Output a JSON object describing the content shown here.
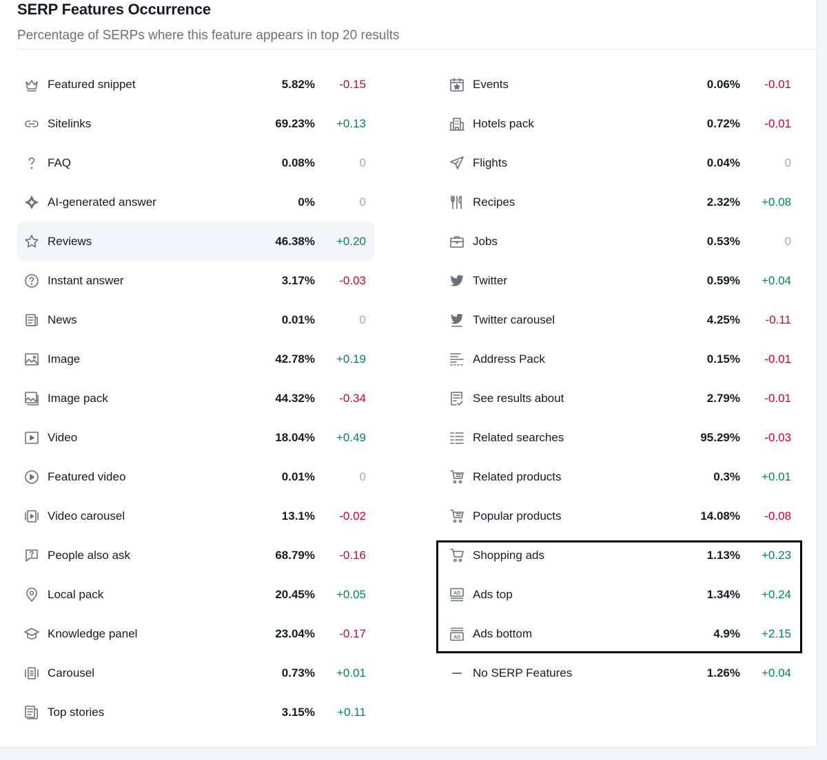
{
  "title": "SERP Features Occurrence",
  "subtitle": "Percentage of SERPs where this feature appears in top 20 results",
  "colors": {
    "positive": "#008557",
    "negative": "#d1002f",
    "neutral": "#a4a6b3",
    "highlight_row": "#f4f5f9"
  },
  "left": [
    {
      "icon": "crown-icon",
      "label": "Featured snippet",
      "value": "5.82%",
      "change": "-0.15"
    },
    {
      "icon": "link-icon",
      "label": "Sitelinks",
      "value": "69.23%",
      "change": "+0.13"
    },
    {
      "icon": "question-icon",
      "label": "FAQ",
      "value": "0.08%",
      "change": "0"
    },
    {
      "icon": "ai-sparkle-icon",
      "label": "AI-generated answer",
      "value": "0%",
      "change": "0"
    },
    {
      "icon": "star-icon",
      "label": "Reviews",
      "value": "46.38%",
      "change": "+0.20"
    },
    {
      "icon": "question-circle-icon",
      "label": "Instant answer",
      "value": "3.17%",
      "change": "-0.03"
    },
    {
      "icon": "news-icon",
      "label": "News",
      "value": "0.01%",
      "change": "0"
    },
    {
      "icon": "image-icon",
      "label": "Image",
      "value": "42.78%",
      "change": "+0.19"
    },
    {
      "icon": "image-pack-icon",
      "label": "Image pack",
      "value": "44.32%",
      "change": "-0.34"
    },
    {
      "icon": "video-icon",
      "label": "Video",
      "value": "18.04%",
      "change": "+0.49"
    },
    {
      "icon": "play-circle-icon",
      "label": "Featured video",
      "value": "0.01%",
      "change": "0"
    },
    {
      "icon": "video-carousel-icon",
      "label": "Video carousel",
      "value": "13.1%",
      "change": "-0.02"
    },
    {
      "icon": "chat-question-icon",
      "label": "People also ask",
      "value": "68.79%",
      "change": "-0.16"
    },
    {
      "icon": "map-pin-icon",
      "label": "Local pack",
      "value": "20.45%",
      "change": "+0.05"
    },
    {
      "icon": "graduation-cap-icon",
      "label": "Knowledge panel",
      "value": "23.04%",
      "change": "-0.17"
    },
    {
      "icon": "carousel-icon",
      "label": "Carousel",
      "value": "0.73%",
      "change": "+0.01"
    },
    {
      "icon": "top-stories-icon",
      "label": "Top stories",
      "value": "3.15%",
      "change": "+0.11"
    }
  ],
  "right": [
    {
      "icon": "calendar-star-icon",
      "label": "Events",
      "value": "0.06%",
      "change": "-0.01"
    },
    {
      "icon": "hotel-icon",
      "label": "Hotels pack",
      "value": "0.72%",
      "change": "-0.01"
    },
    {
      "icon": "plane-icon",
      "label": "Flights",
      "value": "0.04%",
      "change": "0"
    },
    {
      "icon": "cutlery-icon",
      "label": "Recipes",
      "value": "2.32%",
      "change": "+0.08"
    },
    {
      "icon": "briefcase-icon",
      "label": "Jobs",
      "value": "0.53%",
      "change": "0"
    },
    {
      "icon": "twitter-icon",
      "label": "Twitter",
      "value": "0.59%",
      "change": "+0.04"
    },
    {
      "icon": "twitter-carousel-icon",
      "label": "Twitter carousel",
      "value": "4.25%",
      "change": "-0.11"
    },
    {
      "icon": "address-icon",
      "label": "Address Pack",
      "value": "0.15%",
      "change": "-0.01"
    },
    {
      "icon": "document-check-icon",
      "label": "See results about",
      "value": "2.79%",
      "change": "-0.01"
    },
    {
      "icon": "list-icon",
      "label": "Related searches",
      "value": "95.29%",
      "change": "-0.03"
    },
    {
      "icon": "cart-list-icon",
      "label": "Related products",
      "value": "0.3%",
      "change": "+0.01"
    },
    {
      "icon": "cart-list-icon",
      "label": "Popular products",
      "value": "14.08%",
      "change": "-0.08"
    },
    {
      "icon": "cart-icon",
      "label": "Shopping ads",
      "value": "1.13%",
      "change": "+0.23"
    },
    {
      "icon": "ads-top-icon",
      "label": "Ads top",
      "value": "1.34%",
      "change": "+0.24"
    },
    {
      "icon": "ads-bottom-icon",
      "label": "Ads bottom",
      "value": "4.9%",
      "change": "+2.15"
    },
    {
      "icon": "dash-icon",
      "label": "No SERP Features",
      "value": "1.26%",
      "change": "+0.04"
    }
  ]
}
